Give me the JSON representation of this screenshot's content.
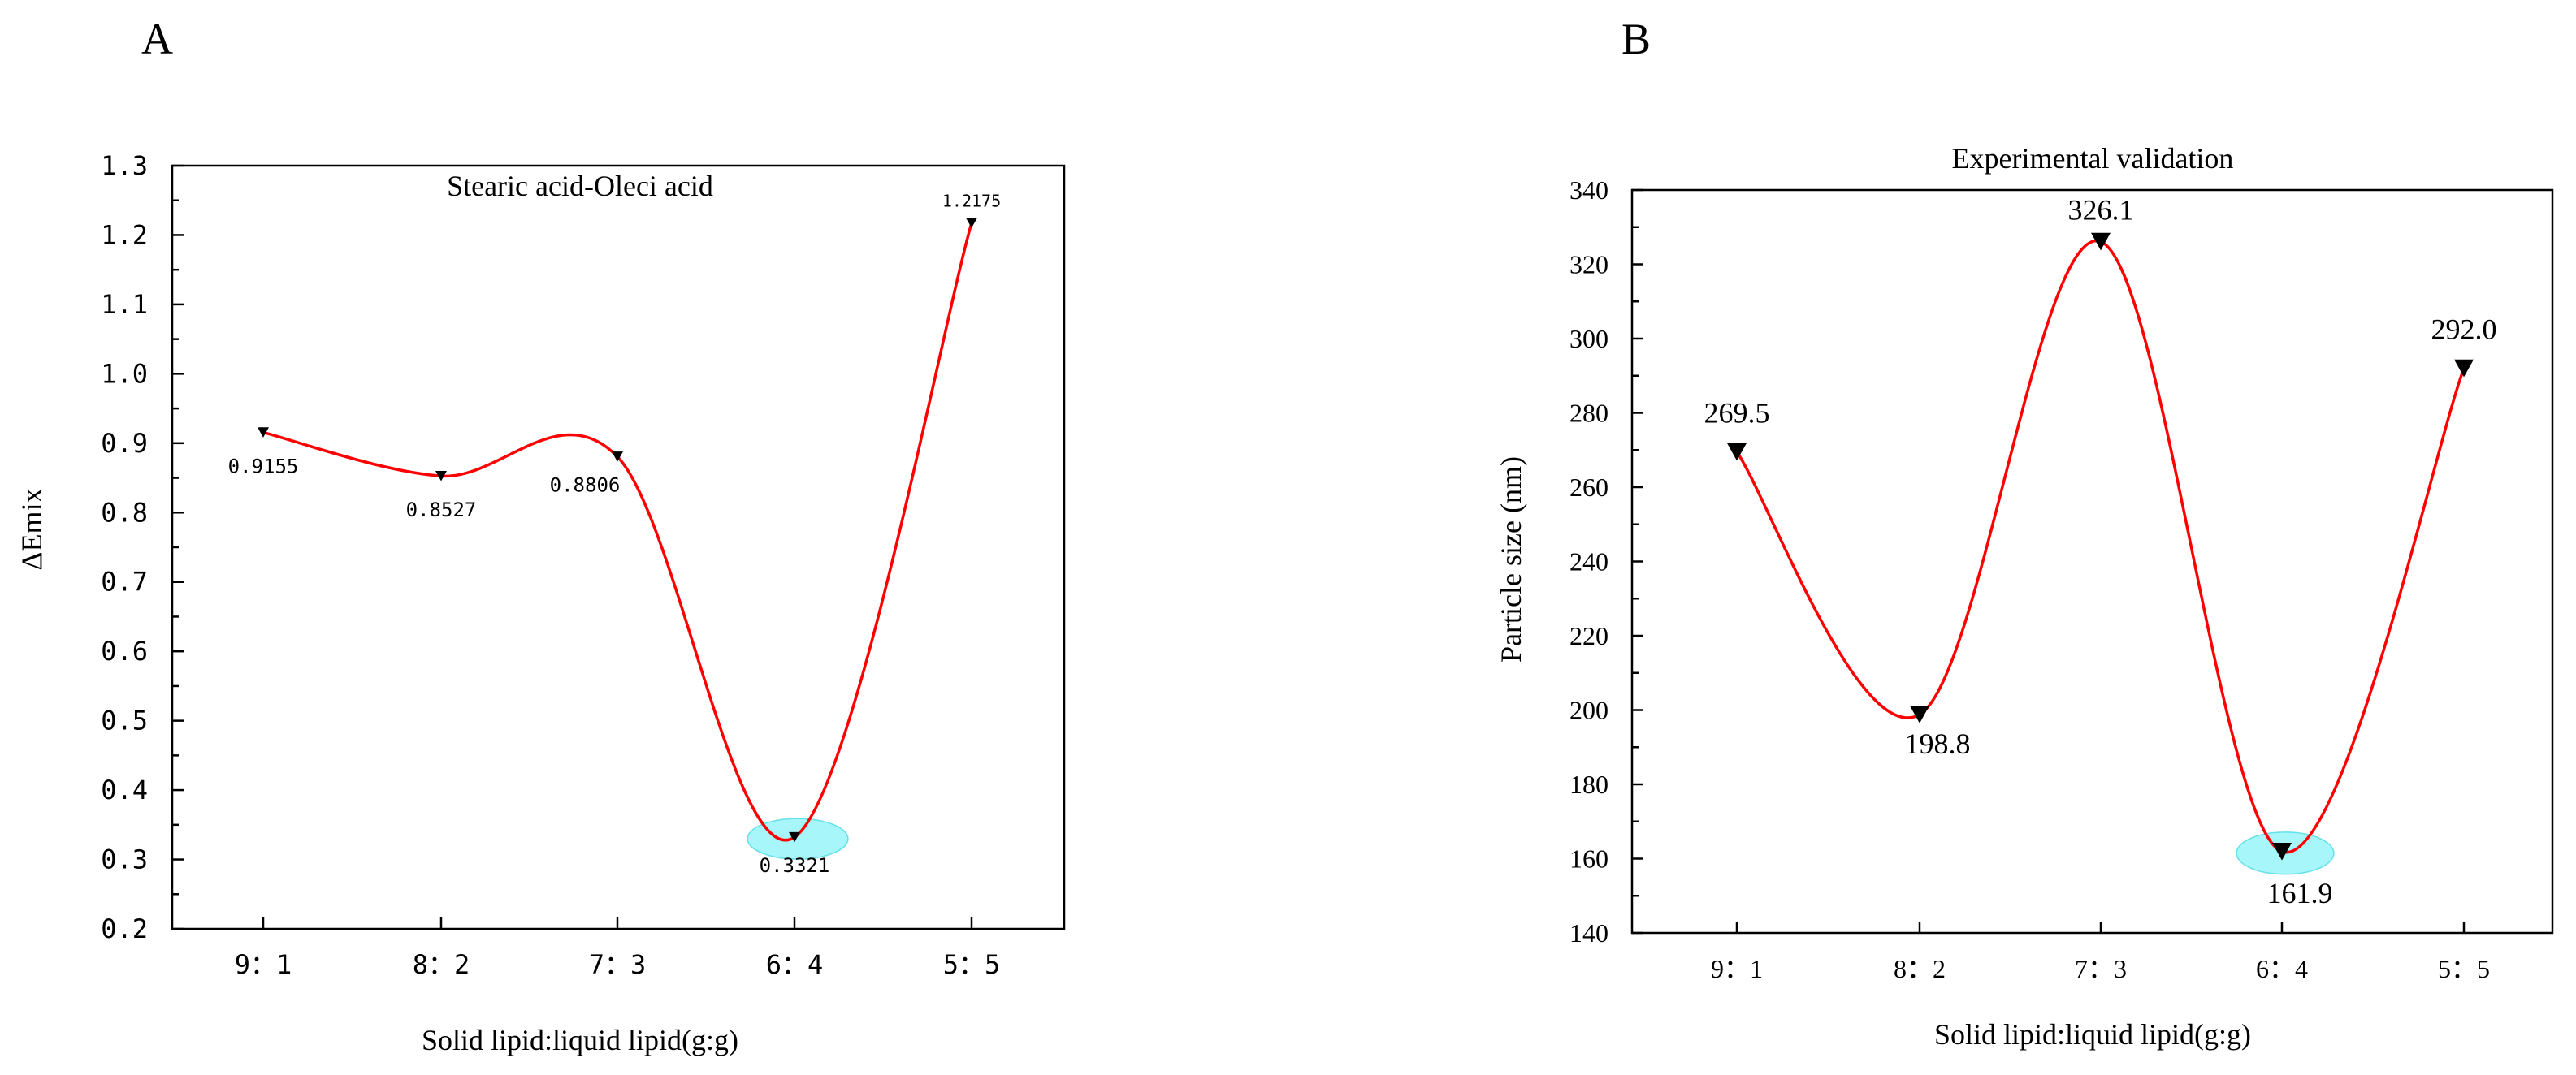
{
  "panels": {
    "a": {
      "letter": "A"
    },
    "b": {
      "letter": "B"
    }
  },
  "chart_data": [
    {
      "type": "line",
      "panel": "A",
      "title": "Stearic acid-Oleci acid",
      "xlabel": "Solid lipid:liquid lipid(g:g)",
      "ylabel": "ΔEmix",
      "categories": [
        "9：1",
        "8：2",
        "7：3",
        "6：4",
        "5：5"
      ],
      "values": [
        0.9155,
        0.8527,
        0.8806,
        0.3321,
        1.2175
      ],
      "data_labels": [
        "0.9155",
        "0.8527",
        "0.8806",
        "0.3321",
        "1.2175"
      ],
      "ylim": [
        0.2,
        1.3
      ],
      "yticks": [
        "0.2",
        "0.3",
        "0.4",
        "0.5",
        "0.6",
        "0.7",
        "0.8",
        "0.9",
        "1.0",
        "1.1",
        "1.2",
        "1.3"
      ],
      "highlight_index": 3,
      "line_color": "#ff0000",
      "highlight_color": "#00e5f0",
      "grid": false
    },
    {
      "type": "line",
      "panel": "B",
      "title": "Experimental validation",
      "xlabel": "Solid lipid:liquid lipid(g:g)",
      "ylabel": "Particle size (nm)",
      "categories": [
        "9：1",
        "8：2",
        "7：3",
        "6：4",
        "5：5"
      ],
      "values": [
        269.5,
        198.8,
        326.1,
        161.9,
        292.0
      ],
      "data_labels": [
        "269.5",
        "198.8",
        "326.1",
        "161.9",
        "292.0"
      ],
      "ylim": [
        140,
        340
      ],
      "yticks": [
        "140",
        "160",
        "180",
        "200",
        "220",
        "240",
        "260",
        "280",
        "300",
        "320",
        "340"
      ],
      "highlight_index": 3,
      "line_color": "#ff0000",
      "highlight_color": "#00e5f0",
      "grid": false
    }
  ]
}
